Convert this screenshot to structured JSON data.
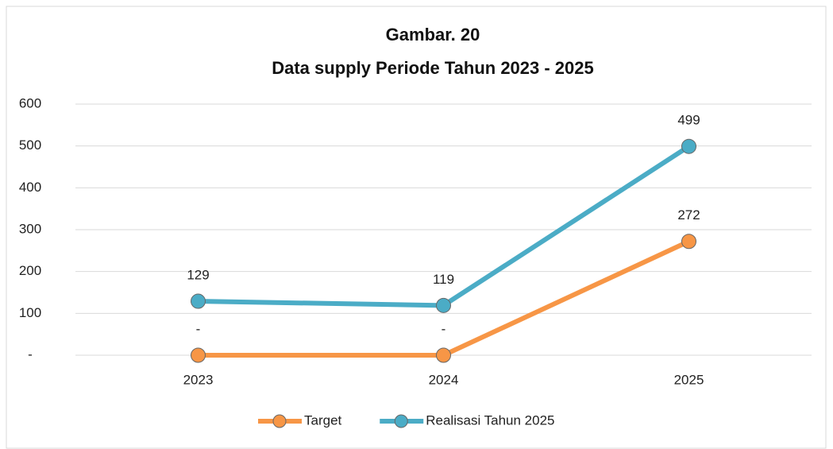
{
  "chart_data": {
    "type": "line",
    "title": [
      "Gambar. 20",
      "Data supply Periode Tahun 2023 - 2025"
    ],
    "categories": [
      "2023",
      "2024",
      "2025"
    ],
    "series": [
      {
        "name": "Target",
        "color": "#f79646",
        "values": [
          0,
          0,
          272
        ],
        "value_labels": [
          "-",
          "-",
          "272"
        ]
      },
      {
        "name": "Realisasi Tahun 2025",
        "color": "#4bacc6",
        "values": [
          129,
          119,
          499
        ]
      }
    ],
    "ylim": [
      0,
      600
    ],
    "yticks": [
      {
        "value": 0,
        "label": "-"
      },
      100,
      200,
      300,
      400,
      500,
      600
    ],
    "grid": true,
    "legend": "bottom"
  }
}
